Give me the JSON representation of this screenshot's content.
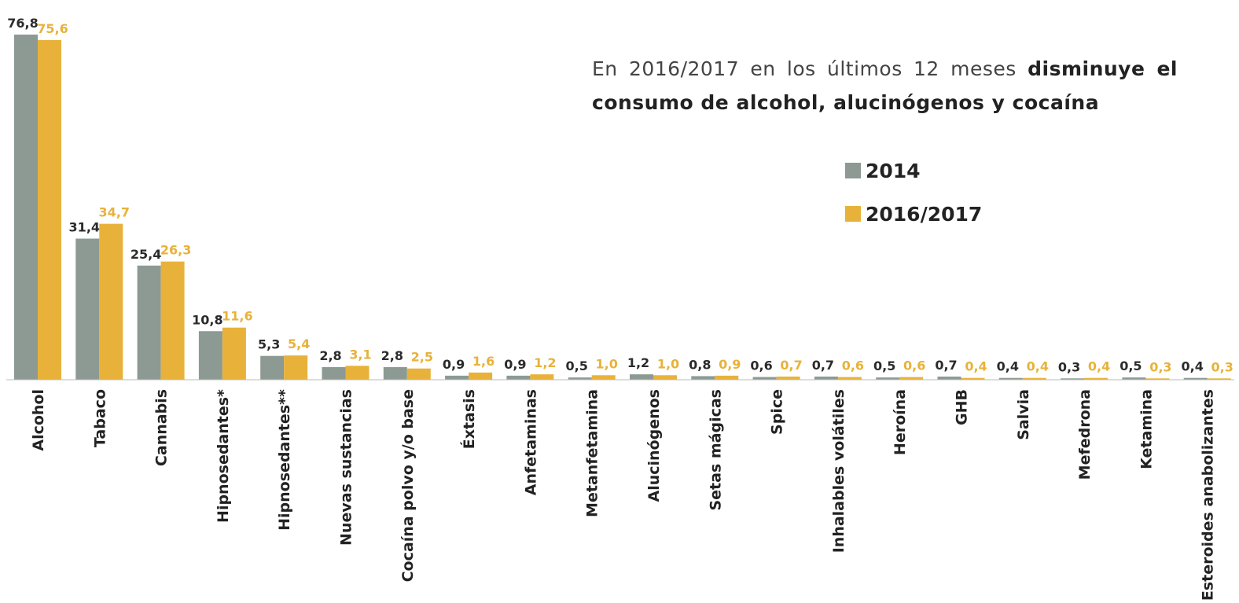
{
  "chart_data": {
    "type": "bar",
    "annotation": [
      "En 2016/2017 en los últimos 12 meses",
      "disminuye el consumo de alcohol, alucinógenos y cocaína"
    ],
    "categories": [
      "Alcohol",
      "Tabaco",
      "Cannabis",
      "Hipnosedantes*",
      "Hipnosedantes**",
      "Nuevas sustancias",
      "Cocaína polvo y/o base",
      "Éxtasis",
      "Anfetaminas",
      "Metanfetamina",
      "Alucinógenos",
      "Setas mágicas",
      "Spice",
      "Inhalables volátiles",
      "Heroína",
      "GHB",
      "Salvia",
      "Mefedrona",
      "Ketamina",
      "Esteroides anabolizantes"
    ],
    "series": [
      {
        "name": "2014",
        "color": "#8c9a93",
        "values": [
          76.8,
          31.4,
          25.4,
          10.8,
          5.3,
          2.8,
          2.8,
          0.9,
          0.9,
          0.5,
          1.2,
          0.8,
          0.6,
          0.7,
          0.5,
          0.7,
          0.4,
          0.3,
          0.5,
          0.4
        ],
        "value_labels": [
          "76,8",
          "31,4",
          "25,4",
          "10,8",
          "5,3",
          "2,8",
          "2,8",
          "0,9",
          "0,9",
          "0,5",
          "1,2",
          "0,8",
          "0,6",
          "0,7",
          "0,5",
          "0,7",
          "0,4",
          "0,3",
          "0,5",
          "0,4"
        ]
      },
      {
        "name": "2016/2017",
        "color": "#e8b23a",
        "values": [
          75.6,
          34.7,
          26.3,
          11.6,
          5.4,
          3.1,
          2.5,
          1.6,
          1.2,
          1.0,
          1.0,
          0.9,
          0.7,
          0.6,
          0.6,
          0.4,
          0.4,
          0.4,
          0.3,
          0.3
        ],
        "value_labels": [
          "75,6",
          "34,7",
          "26,3",
          "11,6",
          "5,4",
          "3,1",
          "2,5",
          "1,6",
          "1,2",
          "1,0",
          "1,0",
          "0,9",
          "0,7",
          "0,6",
          "0,6",
          "0,4",
          "0,4",
          "0,4",
          "0,3",
          "0,3"
        ]
      }
    ]
  }
}
